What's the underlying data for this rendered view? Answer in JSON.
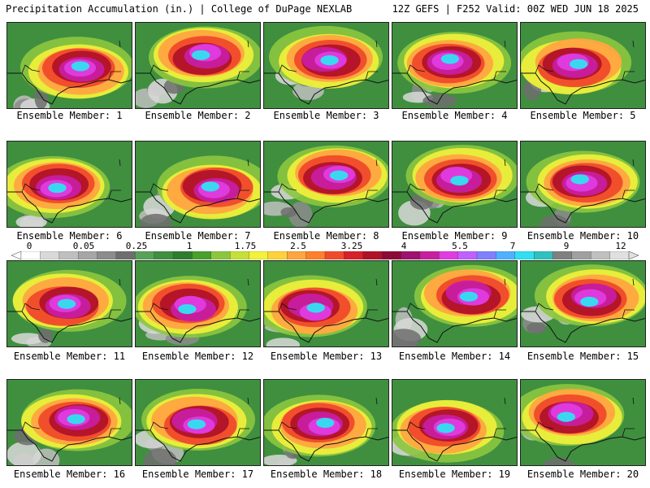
{
  "header": {
    "left": "Precipitation Accumulation (in.) | College of DuPage NEXLAB",
    "right": "12Z GEFS | F252 Valid: 00Z WED JUN 18 2025"
  },
  "colorbar": {
    "labels": [
      "0",
      "0.05",
      "0.25",
      "1",
      "1.75",
      "2.5",
      "3.25",
      "4",
      "5.5",
      "7",
      "9",
      "12"
    ],
    "colors": [
      "#ffffff",
      "#d9d9d9",
      "#bfbfbf",
      "#a6a6a6",
      "#8c8c8c",
      "#6e6e6e",
      "#5aa05a",
      "#3f8f3f",
      "#2e7d2e",
      "#49a02a",
      "#8cc63f",
      "#c6e03a",
      "#f2f23a",
      "#ffd23a",
      "#ffa640",
      "#ff7f2a",
      "#f04a2a",
      "#d8202a",
      "#b01228",
      "#8c0a38",
      "#a0106e",
      "#c81ea0",
      "#e03ce0",
      "#c060ff",
      "#8080ff",
      "#50b0ff",
      "#30e0f0",
      "#30c0c0",
      "#808080",
      "#a0a0a0",
      "#c0c0c0",
      "#e0e0e0"
    ]
  },
  "members": [
    {
      "label": "Ensemble Member: 1"
    },
    {
      "label": "Ensemble Member: 2"
    },
    {
      "label": "Ensemble Member: 3"
    },
    {
      "label": "Ensemble Member: 4"
    },
    {
      "label": "Ensemble Member: 5"
    },
    {
      "label": "Ensemble Member: 6"
    },
    {
      "label": "Ensemble Member: 7"
    },
    {
      "label": "Ensemble Member: 8"
    },
    {
      "label": "Ensemble Member: 9"
    },
    {
      "label": "Ensemble Member: 10"
    },
    {
      "label": "Ensemble Member: 11"
    },
    {
      "label": "Ensemble Member: 12"
    },
    {
      "label": "Ensemble Member: 13"
    },
    {
      "label": "Ensemble Member: 14"
    },
    {
      "label": "Ensemble Member: 15"
    },
    {
      "label": "Ensemble Member: 16"
    },
    {
      "label": "Ensemble Member: 17"
    },
    {
      "label": "Ensemble Member: 18"
    },
    {
      "label": "Ensemble Member: 19"
    },
    {
      "label": "Ensemble Member: 20"
    }
  ]
}
